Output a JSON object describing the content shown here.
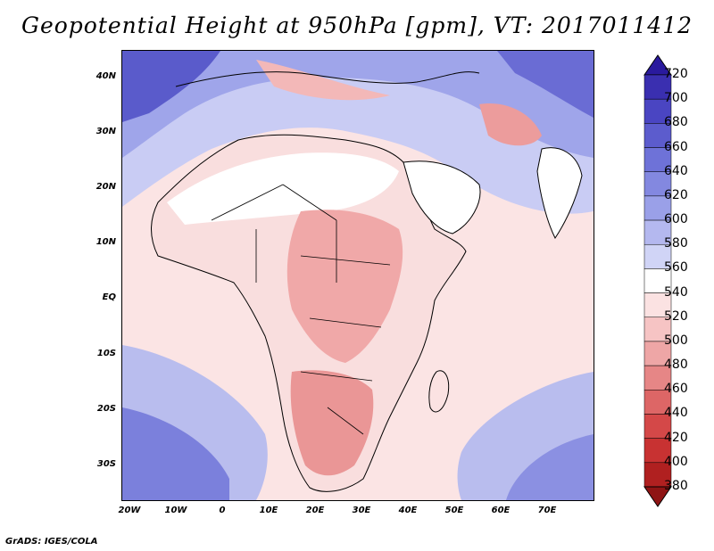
{
  "title": "Geopotential Height at 950hPa [gpm], VT: 2017011412",
  "footer": "GrADS: IGES/COLA",
  "lat_labels": [
    "40N",
    "30N",
    "20N",
    "10N",
    "EQ",
    "10S",
    "20S",
    "30S"
  ],
  "lon_labels": [
    "20W",
    "10W",
    "0",
    "10E",
    "20E",
    "30E",
    "40E",
    "50E",
    "60E",
    "70E"
  ],
  "colorbar": {
    "levels": [
      "720",
      "700",
      "680",
      "660",
      "640",
      "620",
      "600",
      "580",
      "560",
      "540",
      "520",
      "500",
      "480",
      "460",
      "440",
      "420",
      "400",
      "380"
    ],
    "colors": [
      "#2a1a9e",
      "#3a2fb0",
      "#4a45c2",
      "#5c5ccd",
      "#6e72d8",
      "#8388e0",
      "#9aa0e8",
      "#b4b8ef",
      "#d0d4f6",
      "#ffffff",
      "#fbe2e2",
      "#f6c4c4",
      "#eea6a6",
      "#e68686",
      "#dd6666",
      "#d44848",
      "#c83232",
      "#b02020",
      "#8f1414"
    ]
  },
  "map": {
    "land_fill_colors": {
      "ocean_north": "#7070d8",
      "ocean_mid": "#fbe6e6",
      "sahara": "#ffffff",
      "central_africa": "#f3b6b6",
      "southern_africa": "#ec9c9c"
    },
    "lon_range": [
      -22,
      80
    ],
    "lat_range": [
      -37,
      45
    ]
  }
}
